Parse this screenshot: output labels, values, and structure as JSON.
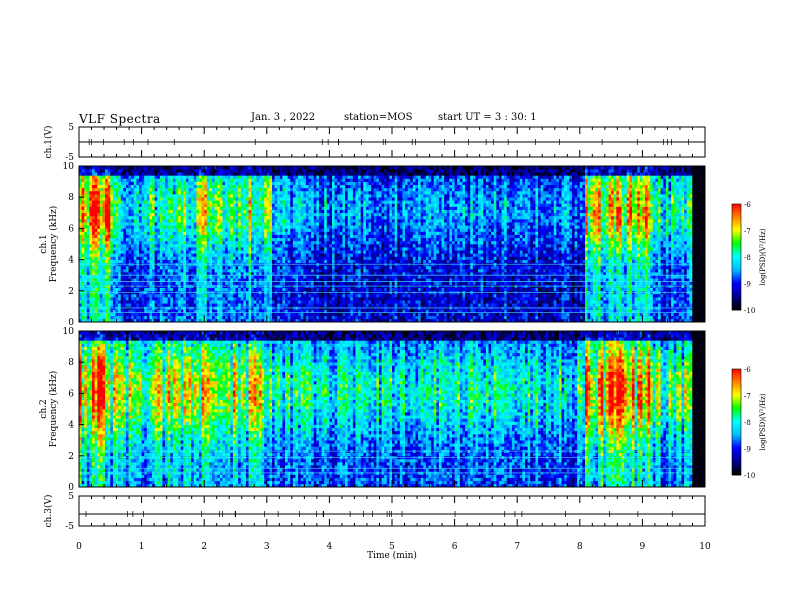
{
  "header": {
    "title": "VLF Spectra",
    "date": "Jan. 3  , 2022",
    "station": "station=MOS",
    "start_ut": "start UT =  3 : 30: 1"
  },
  "chart_data": [
    {
      "type": "line",
      "name": "ch1-voltage",
      "ylabel": "ch.1(V)",
      "ylim": [
        -5,
        5
      ],
      "ytick_labels": [
        "5",
        "-5"
      ],
      "x": [
        0,
        10
      ],
      "y": [
        0,
        0
      ]
    },
    {
      "type": "heatmap",
      "name": "ch1-spectrogram",
      "ylabel": "ch.1\nFrequency (kHz)",
      "ylim": [
        0,
        10
      ],
      "ytick_labels": [
        "0",
        "2",
        "4",
        "6",
        "8",
        "10"
      ],
      "xlim": [
        0,
        10
      ],
      "colorbar": {
        "label": "log(PSD)(V²/Hz)",
        "range": [
          -10,
          -6
        ],
        "tick_labels": [
          "-6",
          "-7",
          "-8",
          "-9",
          "-10"
        ]
      },
      "activity_segments": [
        [
          0.0,
          0.5,
          0.95
        ],
        [
          0.5,
          1.55,
          0.6
        ],
        [
          1.55,
          3.1,
          0.75
        ],
        [
          3.1,
          3.65,
          0.45
        ],
        [
          3.65,
          8.1,
          0.4
        ],
        [
          8.1,
          9.15,
          0.85
        ],
        [
          9.15,
          9.8,
          0.6
        ]
      ]
    },
    {
      "type": "heatmap",
      "name": "ch2-spectrogram",
      "ylabel": "ch.2\nFrequency (kHz)",
      "ylim": [
        0,
        10
      ],
      "ytick_labels": [
        "0",
        "2",
        "4",
        "6",
        "8",
        "10"
      ],
      "xlim": [
        0,
        10
      ],
      "colorbar": {
        "label": "log(PSD)(V²/Hz)",
        "range": [
          -10,
          -6
        ],
        "tick_labels": [
          "-6",
          "-7",
          "-8",
          "-9",
          "-10"
        ]
      },
      "activity_segments": [
        [
          0.0,
          0.5,
          0.95
        ],
        [
          0.5,
          1.55,
          0.75
        ],
        [
          1.55,
          3.1,
          0.8
        ],
        [
          3.1,
          3.65,
          0.6
        ],
        [
          3.65,
          8.1,
          0.55
        ],
        [
          8.1,
          9.15,
          0.9
        ],
        [
          9.15,
          9.8,
          0.65
        ]
      ]
    },
    {
      "type": "line",
      "name": "ch3-voltage",
      "ylabel": "ch.3(V)",
      "ylim": [
        -5,
        5
      ],
      "ytick_labels": [
        "5",
        "-5"
      ],
      "x": [
        0,
        10
      ],
      "y": [
        -1,
        -1
      ]
    }
  ],
  "xaxis": {
    "label": "Time (min)",
    "range": [
      0,
      10
    ],
    "tick_labels": [
      "0",
      "1",
      "2",
      "3",
      "4",
      "5",
      "6",
      "7",
      "8",
      "9",
      "10"
    ]
  },
  "colors": {
    "background": "#ffffff",
    "frame": "#000000",
    "spectral_ramp": [
      "#000000",
      "#00008b",
      "#0000ff",
      "#00bfff",
      "#00ffff",
      "#00ff00",
      "#ffff00",
      "#ff8000",
      "#ff0000",
      "#ffffff"
    ]
  }
}
